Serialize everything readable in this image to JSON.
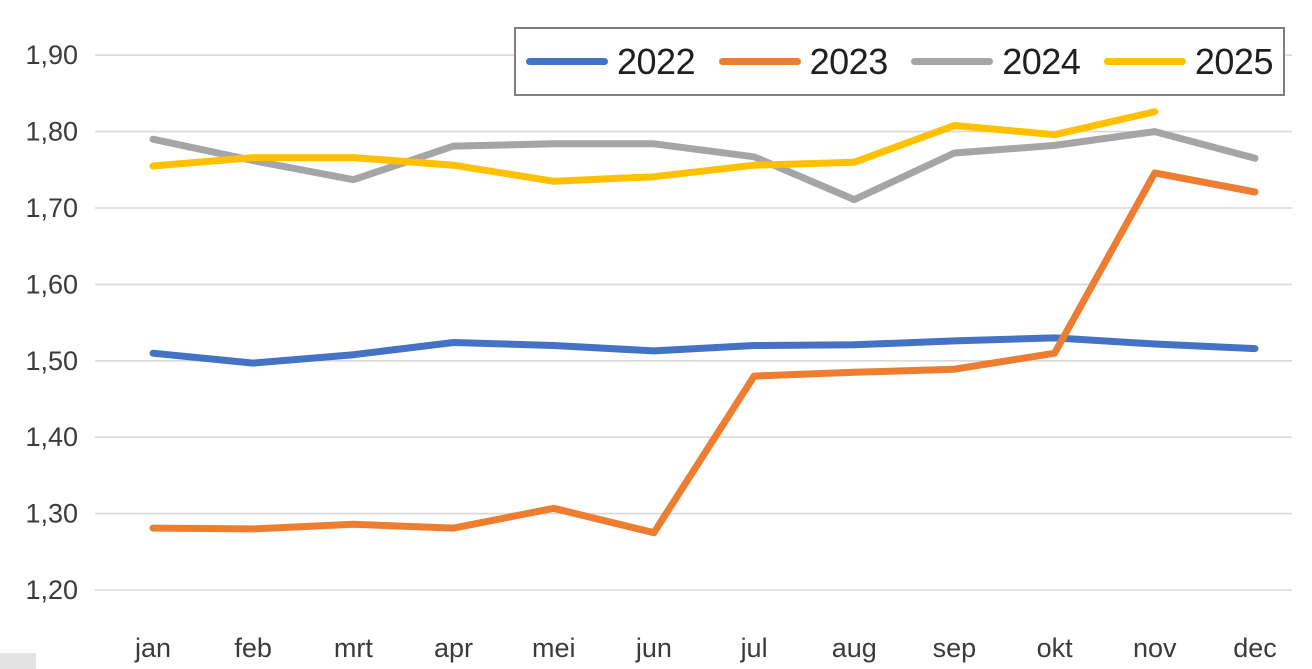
{
  "chart_data": {
    "type": "line",
    "title": "",
    "xlabel": "",
    "ylabel": "",
    "categories": [
      "jan",
      "feb",
      "mrt",
      "apr",
      "mei",
      "jun",
      "jul",
      "aug",
      "sep",
      "okt",
      "nov",
      "dec"
    ],
    "y_tick_labels": [
      "1,90",
      "1,80",
      "1,70",
      "1,60",
      "1,50",
      "1,40",
      "1,30",
      "1,20"
    ],
    "y_ticks": [
      1.9,
      1.8,
      1.7,
      1.6,
      1.5,
      1.4,
      1.3,
      1.2
    ],
    "ylim": [
      1.2,
      1.9
    ],
    "grid": true,
    "legend_position": "top",
    "number_format": "comma-decimal",
    "series": [
      {
        "name": "2022",
        "color": "#4472C4",
        "values": [
          1.51,
          1.497,
          1.508,
          1.524,
          1.52,
          1.513,
          1.52,
          1.521,
          1.526,
          1.53,
          1.522,
          1.516
        ]
      },
      {
        "name": "2023",
        "color": "#ED7D31",
        "values": [
          1.281,
          1.28,
          1.286,
          1.281,
          1.307,
          1.275,
          1.48,
          1.485,
          1.489,
          1.51,
          1.746,
          1.721
        ]
      },
      {
        "name": "2024",
        "color": "#A5A5A5",
        "values": [
          1.79,
          1.762,
          1.737,
          1.781,
          1.784,
          1.784,
          1.767,
          1.711,
          1.772,
          1.782,
          1.8,
          1.765
        ]
      },
      {
        "name": "2025",
        "color": "#FFC000",
        "values": [
          1.755,
          1.766,
          1.766,
          1.756,
          1.735,
          1.741,
          1.756,
          1.76,
          1.808,
          1.796,
          1.826,
          null
        ]
      }
    ]
  },
  "colors": {
    "background": "#FFFFFF",
    "gridline": "#D9D9D9",
    "axis_text": "#3B3B3B",
    "legend_text": "#1F1F1F",
    "legend_border": "#7F7F7F"
  }
}
